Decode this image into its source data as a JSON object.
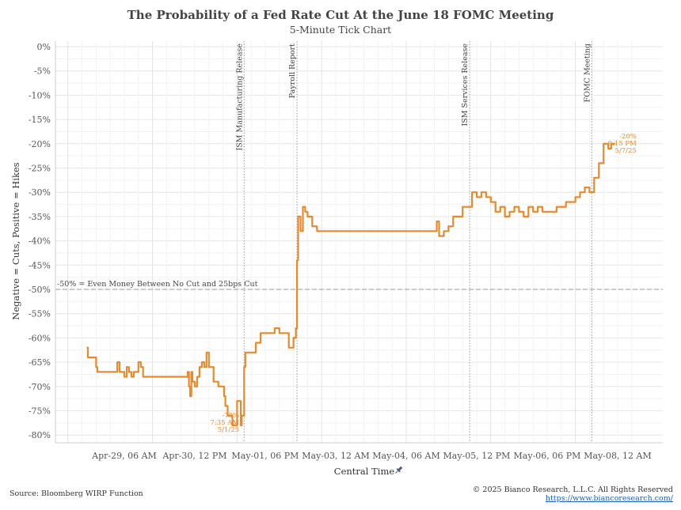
{
  "chart_data": {
    "type": "line",
    "title": "The Probability of a Fed Rate Cut At the June 18 FOMC Meeting",
    "subtitle": "5-Minute Tick Chart",
    "xlabel": "Central Time",
    "ylabel": "Negative = Cuts, Positive = Hikes",
    "x_ticks": [
      "Apr-29, 06 AM",
      "Apr-30, 12 PM",
      "May-01, 06 PM",
      "May-03, 12 AM",
      "May-04, 06 AM",
      "May-05, 12 PM",
      "May-06, 06 PM",
      "May-08, 12 AM"
    ],
    "y_ticks": [
      "0%",
      "-5%",
      "-10%",
      "-15%",
      "-20%",
      "-25%",
      "-30%",
      "-35%",
      "-40%",
      "-45%",
      "-50%",
      "-55%",
      "-60%",
      "-65%",
      "-70%",
      "-75%",
      "-80%"
    ],
    "ylim": [
      -82,
      0
    ],
    "grid": true,
    "series_color": "#e8892b",
    "series": [
      {
        "x": [
          "Apr-28 14:00",
          "Apr-28 14:30",
          "Apr-28 15:30",
          "Apr-28 16:30",
          "Apr-28 18:00",
          "Apr-28 18:30",
          "Apr-28 20:00",
          "Apr-28 22:00",
          "Apr-29 01:00",
          "Apr-29 01:30",
          "Apr-29 02:30",
          "Apr-29 03:00",
          "Apr-29 04:00",
          "Apr-29 06:00",
          "Apr-29 07:00",
          "Apr-29 08:00",
          "Apr-29 09:00",
          "Apr-29 09:30",
          "Apr-29 10:00",
          "Apr-29 10:30",
          "Apr-29 12:00",
          "Apr-29 13:00",
          "Apr-29 14:00",
          "Apr-29 15:00",
          "Apr-29 16:00",
          "Apr-29 18:00",
          "Apr-30 00:00",
          "Apr-30 06:00",
          "Apr-30 08:00",
          "Apr-30 08:30",
          "Apr-30 09:00",
          "Apr-30 09:30",
          "Apr-30 10:00",
          "Apr-30 10:30",
          "Apr-30 11:00",
          "Apr-30 12:00",
          "Apr-30 13:00",
          "Apr-30 14:00",
          "Apr-30 15:00",
          "Apr-30 16:00",
          "Apr-30 17:00",
          "Apr-30 18:00",
          "Apr-30 20:00",
          "Apr-30 22:00",
          "May-01 00:00",
          "May-01 00:30",
          "May-01 01:00",
          "May-01 02:00",
          "May-01 04:00",
          "May-01 06:00",
          "May-01 07:35",
          "May-01 08:00",
          "May-01 09:00",
          "May-01 09:30",
          "May-01 10:00",
          "May-01 12:00",
          "May-01 14:00",
          "May-01 16:00",
          "May-01 18:00",
          "May-01 20:00",
          "May-01 22:00",
          "May-02 00:00",
          "May-02 02:00",
          "May-02 04:00",
          "May-02 06:00",
          "May-02 07:00",
          "May-02 07:30",
          "May-02 08:00",
          "May-02 09:00",
          "May-02 10:00",
          "May-02 11:00",
          "May-02 12:00",
          "May-02 14:00",
          "May-02 16:00",
          "May-02 18:00",
          "May-03 00:00",
          "May-03 12:00",
          "May-04 00:00",
          "May-04 12:00",
          "May-04 18:00",
          "May-04 19:00",
          "May-04 20:00",
          "May-04 22:00",
          "May-05 00:00",
          "May-05 02:00",
          "May-05 04:00",
          "May-05 06:00",
          "May-05 08:00",
          "May-05 09:00",
          "May-05 10:00",
          "May-05 12:00",
          "May-05 14:00",
          "May-05 16:00",
          "May-05 18:00",
          "May-05 20:00",
          "May-05 22:00",
          "May-06 00:00",
          "May-06 02:00",
          "May-06 04:00",
          "May-06 06:00",
          "May-06 08:00",
          "May-06 10:00",
          "May-06 12:00",
          "May-06 14:00",
          "May-06 16:00",
          "May-06 18:00",
          "May-06 20:00",
          "May-06 22:00",
          "May-07 00:00",
          "May-07 02:00",
          "May-07 04:00",
          "May-07 06:00",
          "May-07 08:00",
          "May-07 10:00",
          "May-07 12:00",
          "May-07 13:00",
          "May-07 14:00",
          "May-07 16:00",
          "May-07 18:00",
          "May-07 20:00",
          "May-07 21:15",
          "May-07 23:00"
        ],
        "values": [
          -62,
          -64,
          -64,
          -64,
          -66,
          -67,
          -67,
          -67,
          -67,
          -67,
          -67,
          -65,
          -67,
          -68,
          -66,
          -67,
          -68,
          -68,
          -67,
          -67,
          -65,
          -66,
          -68,
          -68,
          -68,
          -68,
          -68,
          -68,
          -68,
          -68,
          -67,
          -70,
          -72,
          -67,
          -69,
          -70,
          -68,
          -66,
          -65,
          -66,
          -63,
          -66,
          -69,
          -70,
          -70,
          -72,
          -74,
          -76,
          -78,
          -73,
          -78,
          -76,
          -66,
          -63,
          -63,
          -63,
          -61,
          -59,
          -59,
          -59,
          -58,
          -59,
          -59,
          -62,
          -60,
          -58,
          -44,
          -35,
          -38,
          -33,
          -34,
          -35,
          -37,
          -38,
          -38,
          -38,
          -38,
          -38,
          -38,
          -38,
          -36,
          -39,
          -38,
          -37,
          -35,
          -35,
          -33,
          -33,
          -33,
          -30,
          -31,
          -30,
          -31,
          -32,
          -34,
          -33,
          -35,
          -34,
          -33,
          -34,
          -35,
          -33,
          -34,
          -33,
          -34,
          -34,
          -34,
          -33,
          -33,
          -32,
          -32,
          -31,
          -30,
          -29,
          -30,
          -30,
          -27,
          -24,
          -20,
          -21,
          -20,
          -20
        ]
      }
    ],
    "events": [
      {
        "label": "ISM Manufacturing Release",
        "x": "May-01 09:00"
      },
      {
        "label": "Payroll Report",
        "x": "May-02 07:30"
      },
      {
        "label": "ISM Services Release",
        "x": "May-05 09:00"
      },
      {
        "label": "FOMC Meeting",
        "x": "May-07 13:00"
      }
    ],
    "reference_line": {
      "value": -50,
      "label": "-50% = Even Money Between No Cut and 25bps Cut"
    },
    "annotations": [
      {
        "text": [
          "-78%",
          "7:35 AM",
          "5/1/25"
        ],
        "x": "May-01 07:35",
        "y": -78
      },
      {
        "text": [
          "-20%",
          "9:15 PM",
          "5/7/25"
        ],
        "x": "May-07 21:15",
        "y": -20
      }
    ]
  },
  "footer": {
    "source": "Source: Bloomberg WIRP Function",
    "copyright": "© 2025 Bianco Research, L.L.C. All Rights Reserved",
    "website": "https://www.biancoresearch.com/"
  },
  "pin_icon": "pin-icon"
}
